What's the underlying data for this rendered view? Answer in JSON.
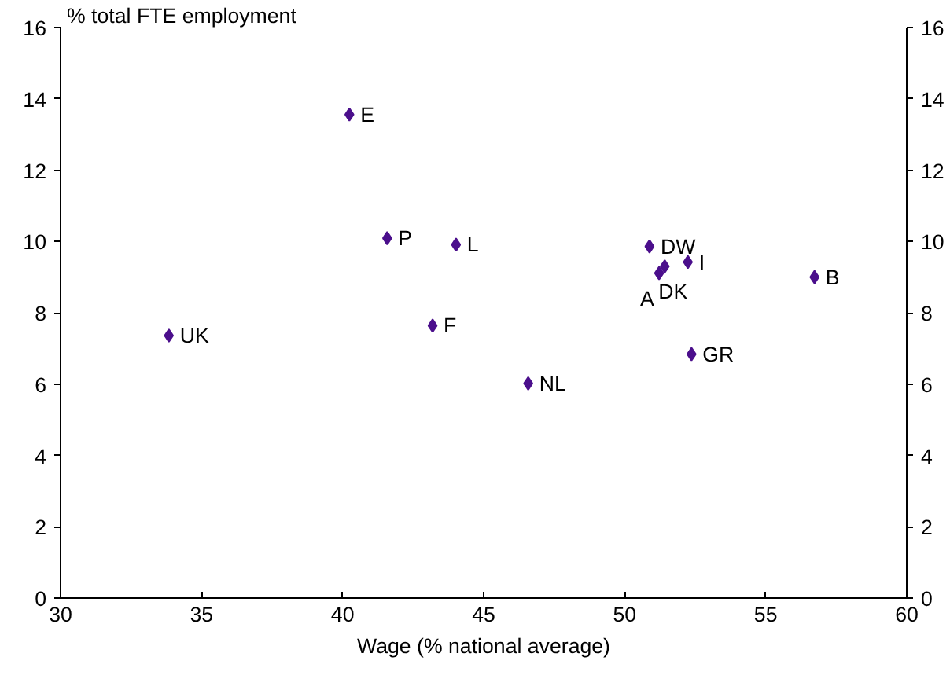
{
  "chart_data": {
    "type": "scatter",
    "xlabel": "Wage (% national average)",
    "ylabel": "% total FTE employment",
    "series": [
      {
        "color": "#4b0f8c",
        "x": [
          40.24,
          41.58,
          44.02,
          33.84,
          43.19,
          46.58,
          50.88,
          52.24,
          51.22,
          51.42,
          56.73,
          52.37
        ],
        "values": [
          13.56,
          10.09,
          9.91,
          7.36,
          7.64,
          6.02,
          9.86,
          9.42,
          9.11,
          9.3,
          9.0,
          6.84
        ]
      }
    ],
    "annotations": [
      {
        "text": "E",
        "x": 40.24,
        "y": 13.56
      },
      {
        "text": "P",
        "x": 41.58,
        "y": 10.09
      },
      {
        "text": "L",
        "x": 44.02,
        "y": 9.91
      },
      {
        "text": "UK",
        "x": 33.84,
        "y": 7.36
      },
      {
        "text": "F",
        "x": 43.19,
        "y": 7.64
      },
      {
        "text": "NL",
        "x": 46.58,
        "y": 6.02
      },
      {
        "text": "DW",
        "x": 50.88,
        "y": 9.86
      },
      {
        "text": "I",
        "x": 52.24,
        "y": 9.42
      },
      {
        "text": "A",
        "x": 51.22,
        "y": 9.11
      },
      {
        "text": "DK",
        "x": 51.42,
        "y": 9.3
      },
      {
        "text": "B",
        "x": 56.73,
        "y": 9.0
      },
      {
        "text": "GR",
        "x": 52.37,
        "y": 6.84
      }
    ],
    "marker": "diamond",
    "grid": false,
    "xlim": [
      30,
      60
    ],
    "xticks": [
      30,
      35,
      40,
      45,
      50,
      55,
      60
    ],
    "ylim": [
      0,
      16
    ],
    "yticks": [
      0,
      2,
      4,
      6,
      8,
      10,
      12,
      14,
      16
    ],
    "y2lim": [
      0,
      16
    ],
    "y2ticks": [
      0,
      2,
      4,
      6,
      8,
      10,
      12,
      14,
      16
    ]
  }
}
